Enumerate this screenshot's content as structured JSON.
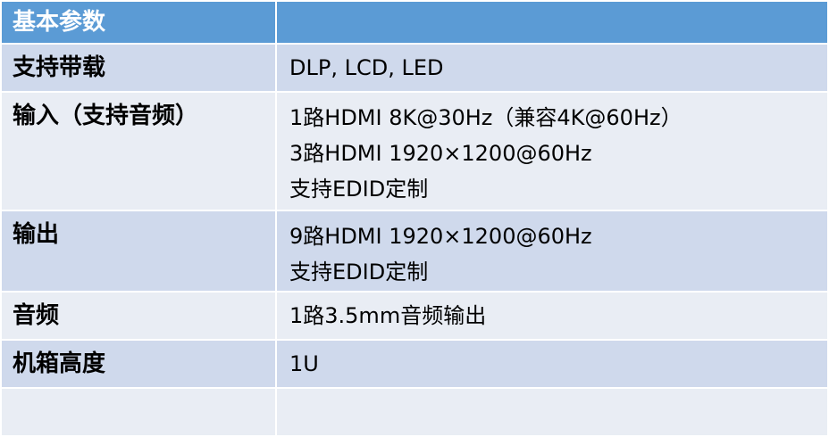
{
  "header": {
    "title": "基本参数",
    "value": ""
  },
  "rows": [
    {
      "key": "支持带载",
      "lines": [
        "DLP, LCD, LED"
      ]
    },
    {
      "key": "输入（支持音频）",
      "lines": [
        "1路HDMI 8K@30Hz（兼容4K@60Hz）",
        "3路HDMI 1920×1200@60Hz",
        "支持EDID定制"
      ]
    },
    {
      "key": "输出",
      "lines": [
        "9路HDMI 1920×1200@60Hz",
        "支持EDID定制"
      ]
    },
    {
      "key": "音频",
      "lines": [
        "1路3.5mm音频输出"
      ]
    },
    {
      "key": "机箱高度",
      "lines": [
        "1U"
      ]
    },
    {
      "key": "",
      "lines": [
        ""
      ]
    }
  ],
  "colors": {
    "header": "#5B9BD5",
    "row_dark": "#CFD9EC",
    "row_light": "#E9EDF4"
  }
}
